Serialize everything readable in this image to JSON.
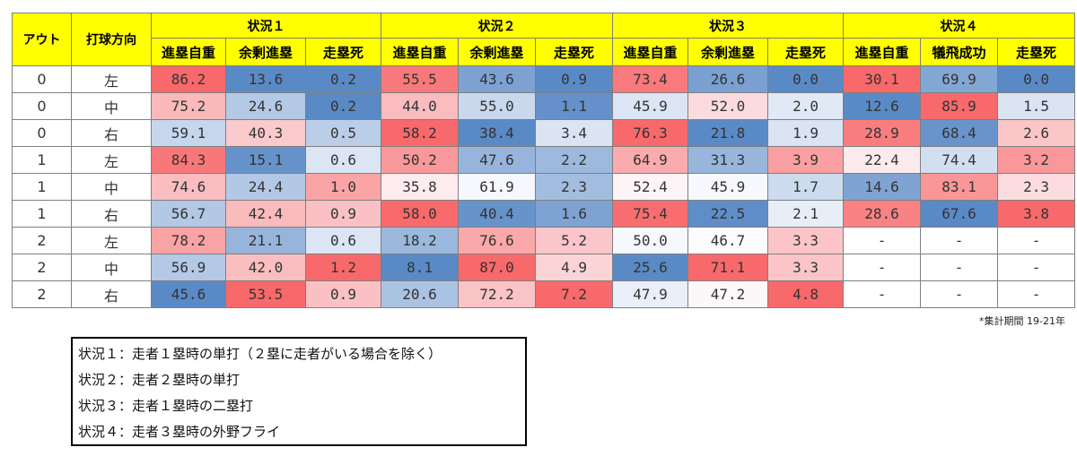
{
  "header": {
    "out_label": "アウト",
    "direction_label": "打球方向",
    "situations": [
      "状況１",
      "状況２",
      "状況３",
      "状況４"
    ],
    "sub_labels": [
      [
        "進塁自重",
        "余剰進塁",
        "走塁死"
      ],
      [
        "進塁自重",
        "余剰進塁",
        "走塁死"
      ],
      [
        "進塁自重",
        "余剰進塁",
        "走塁死"
      ],
      [
        "進塁自重",
        "犠飛成功",
        "走塁死"
      ]
    ]
  },
  "rows": [
    {
      "out": "0",
      "dir": "左",
      "values": [
        "86.2",
        "13.6",
        "0.2",
        "55.5",
        "43.6",
        "0.9",
        "73.4",
        "26.6",
        "0.0",
        "30.1",
        "69.9",
        "0.0"
      ]
    },
    {
      "out": "0",
      "dir": "中",
      "values": [
        "75.2",
        "24.6",
        "0.2",
        "44.0",
        "55.0",
        "1.1",
        "45.9",
        "52.0",
        "2.0",
        "12.6",
        "85.9",
        "1.5"
      ]
    },
    {
      "out": "0",
      "dir": "右",
      "values": [
        "59.1",
        "40.3",
        "0.5",
        "58.2",
        "38.4",
        "3.4",
        "76.3",
        "21.8",
        "1.9",
        "28.9",
        "68.4",
        "2.6"
      ]
    },
    {
      "out": "1",
      "dir": "左",
      "values": [
        "84.3",
        "15.1",
        "0.6",
        "50.2",
        "47.6",
        "2.2",
        "64.9",
        "31.3",
        "3.9",
        "22.4",
        "74.4",
        "3.2"
      ]
    },
    {
      "out": "1",
      "dir": "中",
      "values": [
        "74.6",
        "24.4",
        "1.0",
        "35.8",
        "61.9",
        "2.3",
        "52.4",
        "45.9",
        "1.7",
        "14.6",
        "83.1",
        "2.3"
      ]
    },
    {
      "out": "1",
      "dir": "右",
      "values": [
        "56.7",
        "42.4",
        "0.9",
        "58.0",
        "40.4",
        "1.6",
        "75.4",
        "22.5",
        "2.1",
        "28.6",
        "67.6",
        "3.8"
      ]
    },
    {
      "out": "2",
      "dir": "左",
      "values": [
        "78.2",
        "21.1",
        "0.6",
        "18.2",
        "76.6",
        "5.2",
        "50.0",
        "46.7",
        "3.3",
        "-",
        "-",
        "-"
      ]
    },
    {
      "out": "2",
      "dir": "中",
      "values": [
        "56.9",
        "42.0",
        "1.2",
        "8.1",
        "87.0",
        "4.9",
        "25.6",
        "71.1",
        "3.3",
        "-",
        "-",
        "-"
      ]
    },
    {
      "out": "2",
      "dir": "右",
      "values": [
        "45.6",
        "53.5",
        "0.9",
        "20.6",
        "72.2",
        "7.2",
        "47.9",
        "47.2",
        "4.8",
        "-",
        "-",
        "-"
      ]
    }
  ],
  "colors": {
    "header_yellow": "#ffff00",
    "scale_low": "#5a8ac6",
    "scale_mid": "#fcfcff",
    "scale_high": "#f8696b"
  },
  "note": "*集計期間 19-21年",
  "legend": [
    "状況１：走者１塁時の単打（２塁に走者がいる場合を除く）",
    "状況２：走者２塁時の単打",
    "状況３：走者１塁時の二塁打",
    "状況４：走者３塁時の外野フライ"
  ]
}
